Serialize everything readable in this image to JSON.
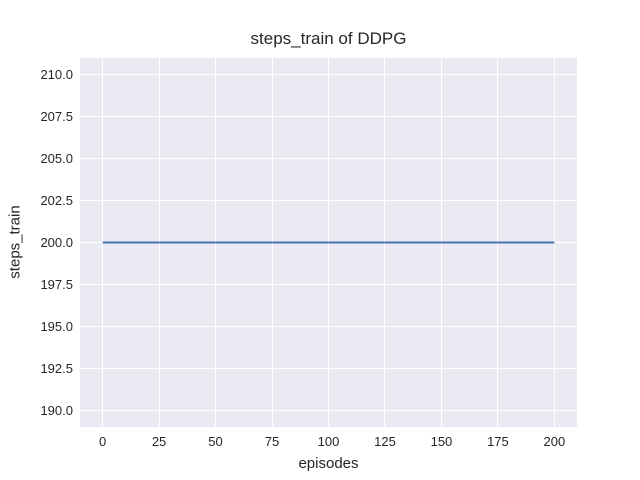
{
  "style": {
    "figure_bg": "#ffffff",
    "plot_bg": "#eaeaf2",
    "grid_color": "#ffffff",
    "text_color": "#262626",
    "accent_line_color": "#4c72b0"
  },
  "chart_data": {
    "type": "line",
    "title": "steps_train of DDPG",
    "xlabel": "episodes",
    "ylabel": "steps_train",
    "xlim": [
      -10,
      210
    ],
    "ylim": [
      189,
      211
    ],
    "x_ticks": [
      0,
      25,
      50,
      75,
      100,
      125,
      150,
      175,
      200
    ],
    "y_ticks": [
      190.0,
      192.5,
      195.0,
      197.5,
      200.0,
      202.5,
      205.0,
      207.5,
      210.0
    ],
    "y_tick_decimals": 1,
    "grid": true,
    "legend": "none",
    "series": [
      {
        "name": "steps_train",
        "color": "#4c72b0",
        "x": [
          0,
          200
        ],
        "y": [
          200,
          200
        ]
      }
    ]
  }
}
